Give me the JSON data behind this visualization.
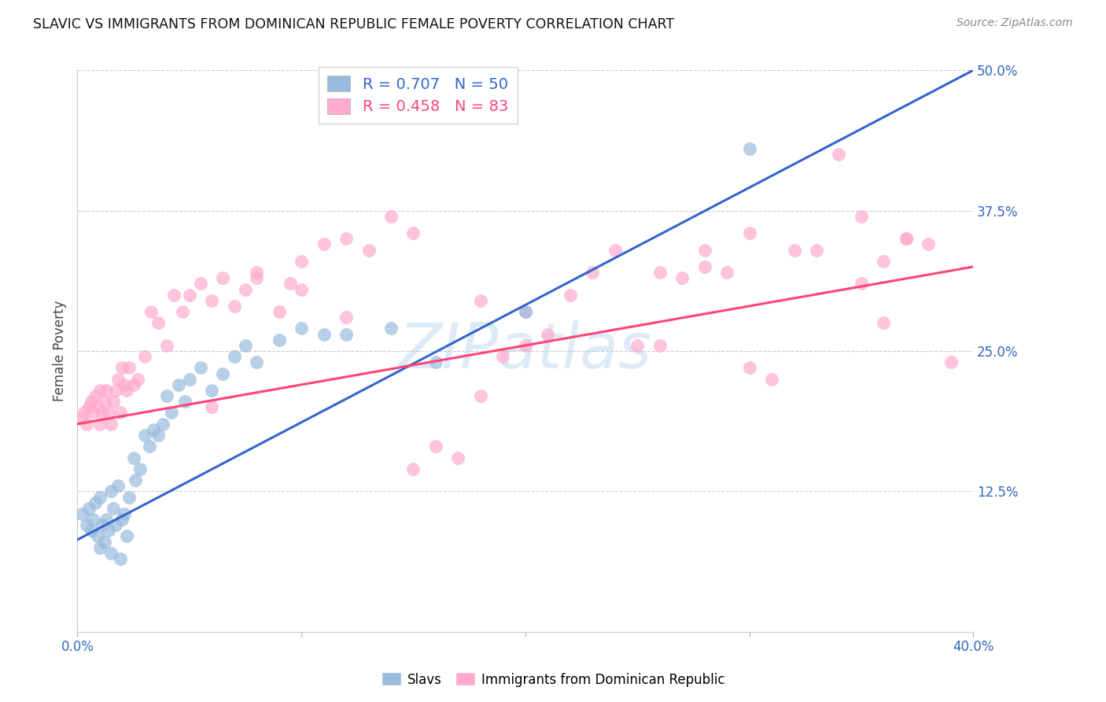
{
  "title": "SLAVIC VS IMMIGRANTS FROM DOMINICAN REPUBLIC FEMALE POVERTY CORRELATION CHART",
  "source": "Source: ZipAtlas.com",
  "ylabel_label": "Female Poverty",
  "x_min": 0.0,
  "x_max": 0.4,
  "y_min": 0.0,
  "y_max": 0.5,
  "x_ticks": [
    0.0,
    0.1,
    0.2,
    0.3,
    0.4
  ],
  "x_tick_labels": [
    "0.0%",
    "",
    "",
    "",
    "40.0%"
  ],
  "y_ticks": [
    0.0,
    0.125,
    0.25,
    0.375,
    0.5
  ],
  "y_tick_labels": [
    "",
    "12.5%",
    "25.0%",
    "37.5%",
    "50.0%"
  ],
  "legend_r1": "R = 0.707",
  "legend_n1": "N = 50",
  "legend_r2": "R = 0.458",
  "legend_n2": "N = 83",
  "blue_color": "#99BBDD",
  "pink_color": "#FFAACC",
  "line_blue": "#3366CC",
  "line_pink": "#FF4477",
  "watermark": "ZIPatlas",
  "watermark_color": "#AACCEE",
  "slavs_x": [
    0.002,
    0.004,
    0.005,
    0.006,
    0.007,
    0.008,
    0.009,
    0.01,
    0.01,
    0.011,
    0.012,
    0.013,
    0.014,
    0.015,
    0.015,
    0.016,
    0.017,
    0.018,
    0.019,
    0.02,
    0.021,
    0.022,
    0.023,
    0.025,
    0.026,
    0.028,
    0.03,
    0.032,
    0.034,
    0.036,
    0.038,
    0.04,
    0.042,
    0.045,
    0.048,
    0.05,
    0.055,
    0.06,
    0.065,
    0.07,
    0.075,
    0.08,
    0.09,
    0.1,
    0.11,
    0.12,
    0.14,
    0.16,
    0.2,
    0.3
  ],
  "slavs_y": [
    0.105,
    0.095,
    0.11,
    0.09,
    0.1,
    0.115,
    0.085,
    0.12,
    0.075,
    0.095,
    0.08,
    0.1,
    0.09,
    0.125,
    0.07,
    0.11,
    0.095,
    0.13,
    0.065,
    0.1,
    0.105,
    0.085,
    0.12,
    0.155,
    0.135,
    0.145,
    0.175,
    0.165,
    0.18,
    0.175,
    0.185,
    0.21,
    0.195,
    0.22,
    0.205,
    0.225,
    0.235,
    0.215,
    0.23,
    0.245,
    0.255,
    0.24,
    0.26,
    0.27,
    0.265,
    0.265,
    0.27,
    0.24,
    0.285,
    0.43
  ],
  "dr_x": [
    0.002,
    0.003,
    0.004,
    0.005,
    0.006,
    0.007,
    0.008,
    0.009,
    0.01,
    0.01,
    0.011,
    0.012,
    0.013,
    0.014,
    0.015,
    0.016,
    0.017,
    0.018,
    0.019,
    0.02,
    0.021,
    0.022,
    0.023,
    0.025,
    0.027,
    0.03,
    0.033,
    0.036,
    0.04,
    0.043,
    0.047,
    0.05,
    0.055,
    0.06,
    0.065,
    0.07,
    0.075,
    0.08,
    0.09,
    0.095,
    0.1,
    0.11,
    0.12,
    0.13,
    0.14,
    0.15,
    0.16,
    0.17,
    0.18,
    0.19,
    0.2,
    0.21,
    0.22,
    0.23,
    0.24,
    0.25,
    0.26,
    0.27,
    0.28,
    0.29,
    0.3,
    0.31,
    0.32,
    0.33,
    0.34,
    0.35,
    0.36,
    0.37,
    0.38,
    0.39,
    0.35,
    0.36,
    0.37,
    0.3,
    0.28,
    0.26,
    0.2,
    0.18,
    0.15,
    0.12,
    0.1,
    0.08,
    0.06
  ],
  "dr_y": [
    0.19,
    0.195,
    0.185,
    0.2,
    0.205,
    0.195,
    0.21,
    0.2,
    0.215,
    0.185,
    0.195,
    0.205,
    0.215,
    0.195,
    0.185,
    0.205,
    0.215,
    0.225,
    0.195,
    0.235,
    0.22,
    0.215,
    0.235,
    0.22,
    0.225,
    0.245,
    0.285,
    0.275,
    0.255,
    0.3,
    0.285,
    0.3,
    0.31,
    0.295,
    0.315,
    0.29,
    0.305,
    0.32,
    0.285,
    0.31,
    0.33,
    0.345,
    0.35,
    0.34,
    0.37,
    0.355,
    0.165,
    0.155,
    0.21,
    0.245,
    0.255,
    0.265,
    0.3,
    0.32,
    0.34,
    0.255,
    0.32,
    0.315,
    0.34,
    0.32,
    0.235,
    0.225,
    0.34,
    0.34,
    0.425,
    0.31,
    0.33,
    0.35,
    0.345,
    0.24,
    0.37,
    0.275,
    0.35,
    0.355,
    0.325,
    0.255,
    0.285,
    0.295,
    0.145,
    0.28,
    0.305,
    0.315,
    0.2
  ],
  "blue_line_x0": 0.0,
  "blue_line_y0": 0.082,
  "blue_line_x1": 0.4,
  "blue_line_y1": 0.5,
  "pink_line_x0": 0.0,
  "pink_line_y0": 0.185,
  "pink_line_x1": 0.4,
  "pink_line_y1": 0.325
}
